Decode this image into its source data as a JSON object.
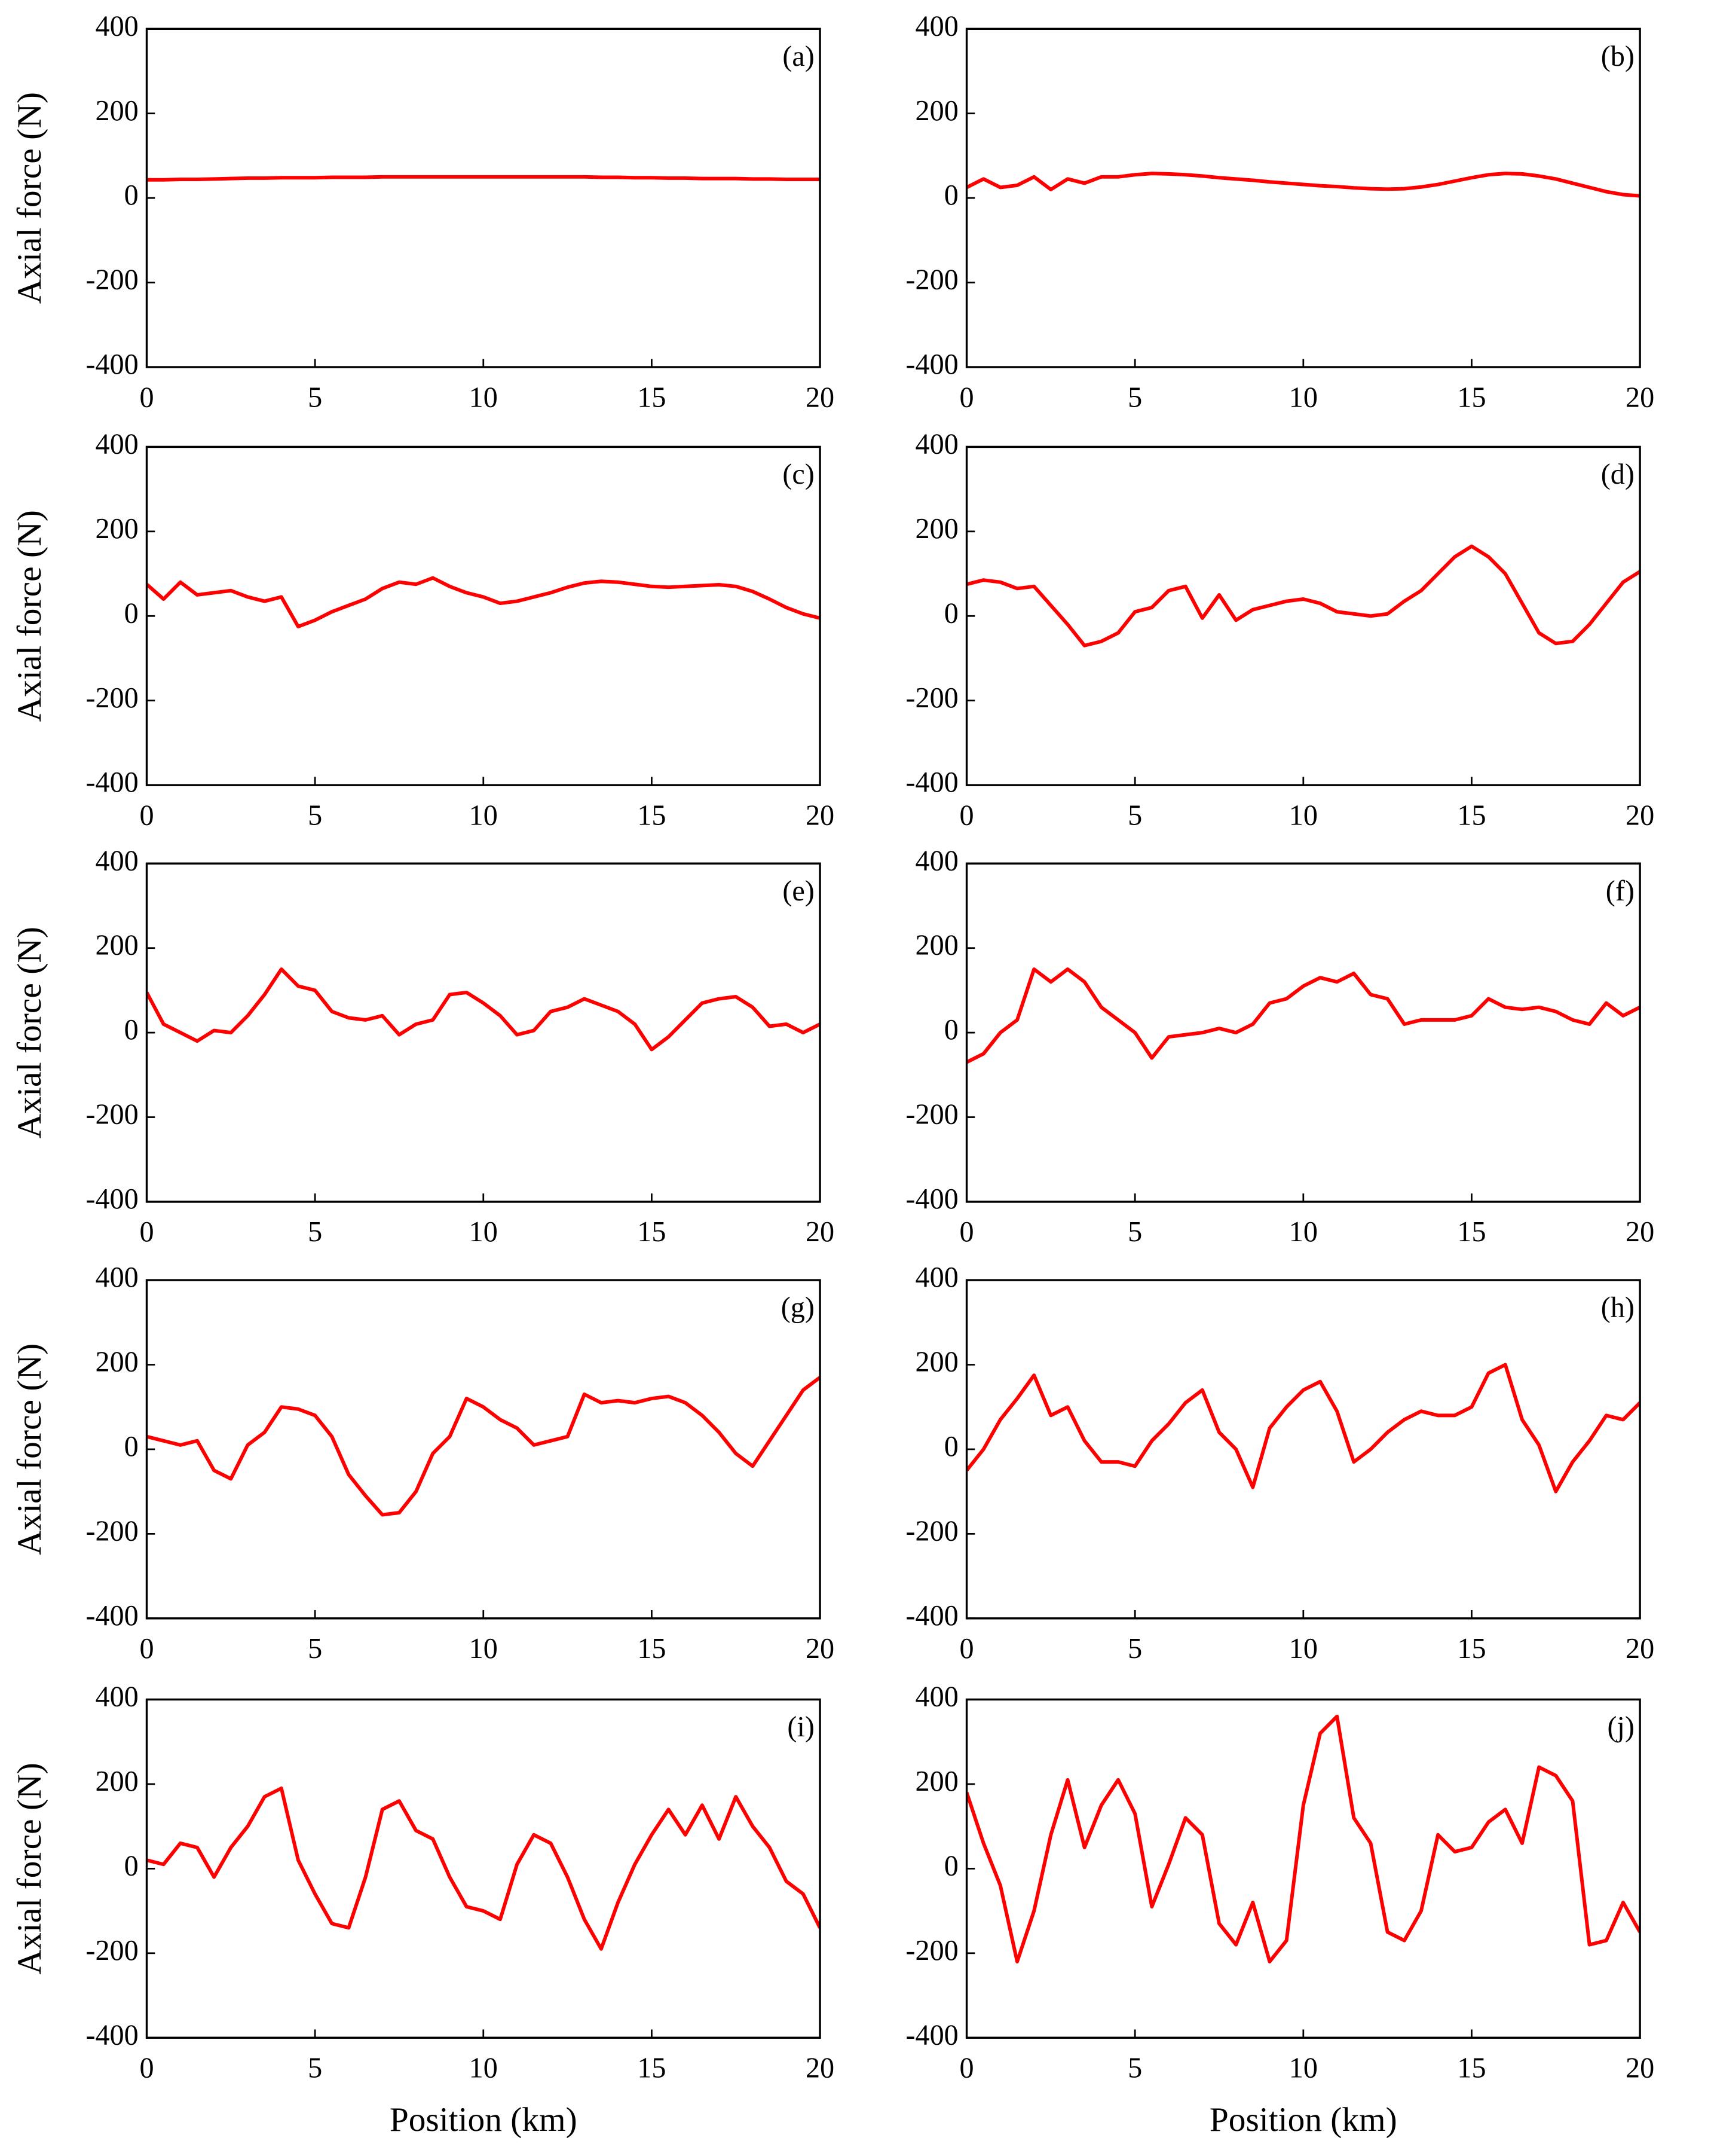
{
  "chart_data": [
    {
      "type": "line",
      "annotation": "(a)",
      "y_label": "Axial force (N)",
      "color": "#ff0000",
      "x": [
        0,
        0.5,
        1,
        1.5,
        2,
        2.5,
        3,
        3.5,
        4,
        4.5,
        5,
        5.5,
        6,
        6.5,
        7,
        7.5,
        8,
        8.5,
        9,
        9.5,
        10,
        10.5,
        11,
        11.5,
        12,
        12.5,
        13,
        13.5,
        14,
        14.5,
        15,
        15.5,
        16,
        16.5,
        17,
        17.5,
        18,
        18.5,
        19,
        19.5,
        20
      ],
      "values": [
        43,
        43,
        44,
        44,
        45,
        46,
        47,
        47,
        48,
        48,
        48,
        49,
        49,
        49,
        50,
        50,
        50,
        50,
        50,
        50,
        50,
        50,
        50,
        50,
        50,
        50,
        50,
        49,
        49,
        48,
        48,
        47,
        47,
        46,
        46,
        46,
        45,
        45,
        44,
        44,
        44
      ],
      "xlim": [
        0,
        20
      ],
      "xticks": [
        0,
        5,
        10,
        15,
        20
      ],
      "ylim": [
        -400,
        400
      ],
      "yticks": [
        -400,
        -200,
        0,
        200,
        400
      ]
    },
    {
      "type": "line",
      "annotation": "(b)",
      "color": "#ff0000",
      "x": [
        0,
        0.5,
        1,
        1.5,
        2,
        2.5,
        3,
        3.5,
        4,
        4.5,
        5,
        5.5,
        6,
        6.5,
        7,
        7.5,
        8,
        8.5,
        9,
        9.5,
        10,
        10.5,
        11,
        11.5,
        12,
        12.5,
        13,
        13.5,
        14,
        14.5,
        15,
        15.5,
        16,
        16.5,
        17,
        17.5,
        18,
        18.5,
        19,
        19.5,
        20
      ],
      "values": [
        25,
        45,
        25,
        30,
        50,
        20,
        45,
        35,
        50,
        50,
        55,
        58,
        57,
        55,
        52,
        48,
        45,
        42,
        38,
        35,
        32,
        29,
        27,
        24,
        22,
        21,
        22,
        26,
        32,
        40,
        48,
        55,
        58,
        57,
        52,
        45,
        35,
        25,
        15,
        8,
        5
      ],
      "xlim": [
        0,
        20
      ],
      "xticks": [
        0,
        5,
        10,
        15,
        20
      ],
      "ylim": [
        -400,
        400
      ],
      "yticks": [
        -400,
        -200,
        0,
        200,
        400
      ]
    },
    {
      "type": "line",
      "annotation": "(c)",
      "y_label": "Axial force (N)",
      "color": "#ff0000",
      "x": [
        0,
        0.5,
        1,
        1.5,
        2,
        2.5,
        3,
        3.5,
        4,
        4.5,
        5,
        5.5,
        6,
        6.5,
        7,
        7.5,
        8,
        8.5,
        9,
        9.5,
        10,
        10.5,
        11,
        11.5,
        12,
        12.5,
        13,
        13.5,
        14,
        14.5,
        15,
        15.5,
        16,
        16.5,
        17,
        17.5,
        18,
        18.5,
        19,
        19.5,
        20
      ],
      "values": [
        75,
        40,
        80,
        50,
        55,
        60,
        45,
        35,
        45,
        -25,
        -10,
        10,
        25,
        40,
        65,
        80,
        75,
        90,
        70,
        55,
        45,
        30,
        35,
        45,
        55,
        68,
        78,
        82,
        80,
        75,
        70,
        68,
        70,
        72,
        74,
        70,
        58,
        40,
        20,
        5,
        -5
      ],
      "xlim": [
        0,
        20
      ],
      "xticks": [
        0,
        5,
        10,
        15,
        20
      ],
      "ylim": [
        -400,
        400
      ],
      "yticks": [
        -400,
        -200,
        0,
        200,
        400
      ]
    },
    {
      "type": "line",
      "annotation": "(d)",
      "color": "#ff0000",
      "x": [
        0,
        0.5,
        1,
        1.5,
        2,
        2.5,
        3,
        3.5,
        4,
        4.5,
        5,
        5.5,
        6,
        6.5,
        7,
        7.5,
        8,
        8.5,
        9,
        9.5,
        10,
        10.5,
        11,
        11.5,
        12,
        12.5,
        13,
        13.5,
        14,
        14.5,
        15,
        15.5,
        16,
        16.5,
        17,
        17.5,
        18,
        18.5,
        19,
        19.5,
        20
      ],
      "values": [
        75,
        85,
        80,
        65,
        70,
        25,
        -20,
        -70,
        -60,
        -40,
        10,
        20,
        60,
        70,
        -5,
        50,
        -10,
        15,
        25,
        35,
        40,
        30,
        10,
        5,
        0,
        5,
        35,
        60,
        100,
        140,
        165,
        140,
        100,
        30,
        -40,
        -65,
        -60,
        -20,
        30,
        80,
        105
      ],
      "xlim": [
        0,
        20
      ],
      "xticks": [
        0,
        5,
        10,
        15,
        20
      ],
      "ylim": [
        -400,
        400
      ],
      "yticks": [
        -400,
        -200,
        0,
        200,
        400
      ]
    },
    {
      "type": "line",
      "annotation": "(e)",
      "y_label": "Axial force (N)",
      "color": "#ff0000",
      "x": [
        0,
        0.5,
        1,
        1.5,
        2,
        2.5,
        3,
        3.5,
        4,
        4.5,
        5,
        5.5,
        6,
        6.5,
        7,
        7.5,
        8,
        8.5,
        9,
        9.5,
        10,
        10.5,
        11,
        11.5,
        12,
        12.5,
        13,
        13.5,
        14,
        14.5,
        15,
        15.5,
        16,
        16.5,
        17,
        17.5,
        18,
        18.5,
        19,
        19.5,
        20
      ],
      "values": [
        95,
        20,
        0,
        -20,
        5,
        0,
        40,
        90,
        150,
        110,
        100,
        50,
        35,
        30,
        40,
        -5,
        20,
        30,
        90,
        95,
        70,
        40,
        -5,
        5,
        50,
        60,
        80,
        65,
        50,
        20,
        -40,
        -10,
        30,
        70,
        80,
        85,
        60,
        15,
        20,
        0,
        20
      ],
      "xlim": [
        0,
        20
      ],
      "xticks": [
        0,
        5,
        10,
        15,
        20
      ],
      "ylim": [
        -400,
        400
      ],
      "yticks": [
        -400,
        -200,
        0,
        200,
        400
      ]
    },
    {
      "type": "line",
      "annotation": "(f)",
      "color": "#ff0000",
      "x": [
        0,
        0.5,
        1,
        1.5,
        2,
        2.5,
        3,
        3.5,
        4,
        4.5,
        5,
        5.5,
        6,
        6.5,
        7,
        7.5,
        8,
        8.5,
        9,
        9.5,
        10,
        10.5,
        11,
        11.5,
        12,
        12.5,
        13,
        13.5,
        14,
        14.5,
        15,
        15.5,
        16,
        16.5,
        17,
        17.5,
        18,
        18.5,
        19,
        19.5,
        20
      ],
      "values": [
        -70,
        -50,
        0,
        30,
        150,
        120,
        150,
        120,
        60,
        30,
        0,
        -60,
        -10,
        -5,
        0,
        10,
        0,
        20,
        70,
        80,
        110,
        130,
        120,
        140,
        90,
        80,
        20,
        30,
        30,
        30,
        40,
        80,
        60,
        55,
        60,
        50,
        30,
        20,
        70,
        40,
        60
      ],
      "xlim": [
        0,
        20
      ],
      "xticks": [
        0,
        5,
        10,
        15,
        20
      ],
      "ylim": [
        -400,
        400
      ],
      "yticks": [
        -400,
        -200,
        0,
        200,
        400
      ]
    },
    {
      "type": "line",
      "annotation": "(g)",
      "y_label": "Axial force (N)",
      "color": "#ff0000",
      "x": [
        0,
        0.5,
        1,
        1.5,
        2,
        2.5,
        3,
        3.5,
        4,
        4.5,
        5,
        5.5,
        6,
        6.5,
        7,
        7.5,
        8,
        8.5,
        9,
        9.5,
        10,
        10.5,
        11,
        11.5,
        12,
        12.5,
        13,
        13.5,
        14,
        14.5,
        15,
        15.5,
        16,
        16.5,
        17,
        17.5,
        18,
        18.5,
        19,
        19.5,
        20
      ],
      "values": [
        30,
        20,
        10,
        20,
        -50,
        -70,
        10,
        40,
        100,
        95,
        80,
        30,
        -60,
        -110,
        -155,
        -150,
        -100,
        -10,
        30,
        120,
        100,
        70,
        50,
        10,
        20,
        30,
        130,
        110,
        115,
        110,
        120,
        125,
        110,
        80,
        40,
        -10,
        -40,
        20,
        80,
        140,
        170
      ],
      "xlim": [
        0,
        20
      ],
      "xticks": [
        0,
        5,
        10,
        15,
        20
      ],
      "ylim": [
        -400,
        400
      ],
      "yticks": [
        -400,
        -200,
        0,
        200,
        400
      ]
    },
    {
      "type": "line",
      "annotation": "(h)",
      "color": "#ff0000",
      "x": [
        0,
        0.5,
        1,
        1.5,
        2,
        2.5,
        3,
        3.5,
        4,
        4.5,
        5,
        5.5,
        6,
        6.5,
        7,
        7.5,
        8,
        8.5,
        9,
        9.5,
        10,
        10.5,
        11,
        11.5,
        12,
        12.5,
        13,
        13.5,
        14,
        14.5,
        15,
        15.5,
        16,
        16.5,
        17,
        17.5,
        18,
        18.5,
        19,
        19.5,
        20
      ],
      "values": [
        -50,
        0,
        70,
        120,
        175,
        80,
        100,
        20,
        -30,
        -30,
        -40,
        20,
        60,
        110,
        140,
        40,
        0,
        -90,
        50,
        100,
        140,
        160,
        90,
        -30,
        0,
        40,
        70,
        90,
        80,
        80,
        100,
        180,
        200,
        70,
        10,
        -100,
        -30,
        20,
        80,
        70,
        110
      ],
      "xlim": [
        0,
        20
      ],
      "xticks": [
        0,
        5,
        10,
        15,
        20
      ],
      "ylim": [
        -400,
        400
      ],
      "yticks": [
        -400,
        -200,
        0,
        200,
        400
      ]
    },
    {
      "type": "line",
      "annotation": "(i)",
      "y_label": "Axial force (N)",
      "x_label": "Position (km)",
      "color": "#ff0000",
      "x": [
        0,
        0.5,
        1,
        1.5,
        2,
        2.5,
        3,
        3.5,
        4,
        4.5,
        5,
        5.5,
        6,
        6.5,
        7,
        7.5,
        8,
        8.5,
        9,
        9.5,
        10,
        10.5,
        11,
        11.5,
        12,
        12.5,
        13,
        13.5,
        14,
        14.5,
        15,
        15.5,
        16,
        16.5,
        17,
        17.5,
        18,
        18.5,
        19,
        19.5,
        20
      ],
      "values": [
        20,
        10,
        60,
        50,
        -20,
        50,
        100,
        170,
        190,
        20,
        -60,
        -130,
        -140,
        -20,
        140,
        160,
        90,
        70,
        -20,
        -90,
        -100,
        -120,
        10,
        80,
        60,
        -20,
        -120,
        -190,
        -80,
        10,
        80,
        140,
        80,
        150,
        70,
        170,
        100,
        50,
        -30,
        -60,
        -140
      ],
      "xlim": [
        0,
        20
      ],
      "xticks": [
        0,
        5,
        10,
        15,
        20
      ],
      "ylim": [
        -400,
        400
      ],
      "yticks": [
        -400,
        -200,
        0,
        200,
        400
      ]
    },
    {
      "type": "line",
      "annotation": "(j)",
      "x_label": "Position (km)",
      "color": "#ff0000",
      "x": [
        0,
        0.5,
        1,
        1.5,
        2,
        2.5,
        3,
        3.5,
        4,
        4.5,
        5,
        5.5,
        6,
        6.5,
        7,
        7.5,
        8,
        8.5,
        9,
        9.5,
        10,
        10.5,
        11,
        11.5,
        12,
        12.5,
        13,
        13.5,
        14,
        14.5,
        15,
        15.5,
        16,
        16.5,
        17,
        17.5,
        18,
        18.5,
        19,
        19.5,
        20
      ],
      "values": [
        180,
        60,
        -40,
        -220,
        -100,
        80,
        210,
        50,
        150,
        210,
        130,
        -90,
        10,
        120,
        80,
        -130,
        -180,
        -80,
        -220,
        -170,
        150,
        320,
        360,
        120,
        60,
        -150,
        -170,
        -100,
        80,
        40,
        50,
        110,
        140,
        60,
        240,
        220,
        160,
        -180,
        -170,
        -80,
        -150
      ],
      "xlim": [
        0,
        20
      ],
      "xticks": [
        0,
        5,
        10,
        15,
        20
      ],
      "ylim": [
        -400,
        400
      ],
      "yticks": [
        -400,
        -200,
        0,
        200,
        400
      ]
    }
  ]
}
